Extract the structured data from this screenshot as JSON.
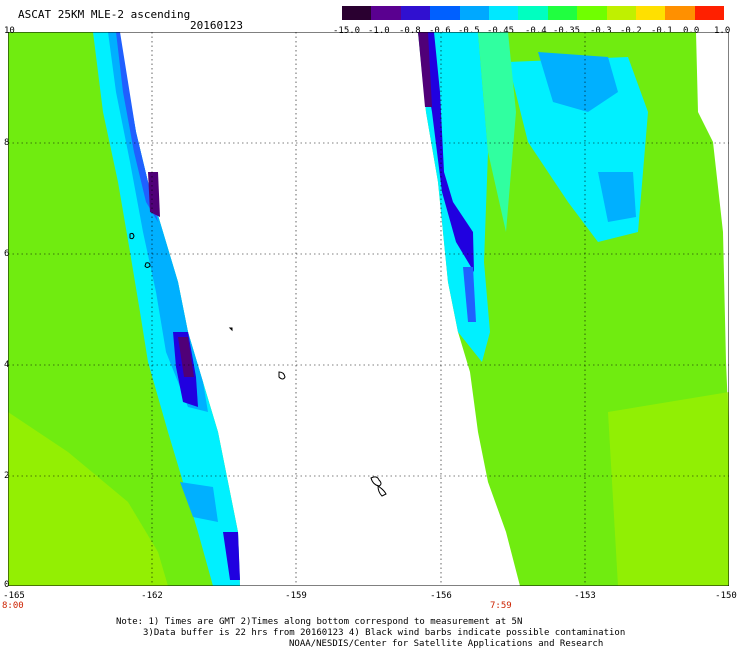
{
  "header": {
    "title": "ASCAT 25KM MLE-2 ascending",
    "date": "20160123"
  },
  "colorbar": {
    "labels": [
      "-15.0",
      "-1.0",
      "-0.8",
      "-0.6",
      "-0.5",
      "-0.45",
      "-0.4",
      "-0.35",
      "-0.3",
      "-0.2",
      "-0.1",
      "0.0",
      "1.0"
    ],
    "colors": [
      "#2a0030",
      "#5a0090",
      "#3010d0",
      "#0060ff",
      "#00a8ff",
      "#00e8ff",
      "#00ffc0",
      "#20ff40",
      "#70ff00",
      "#c0f000",
      "#ffe000",
      "#ff9000",
      "#ff2000"
    ]
  },
  "axes": {
    "y_ticks": [
      "10",
      "8",
      "6",
      "4",
      "2",
      "0"
    ],
    "x_ticks": [
      "-165",
      "-162",
      "-159",
      "-156",
      "-153",
      "-150"
    ]
  },
  "pass_times": {
    "left": "8:00",
    "right": "7:59"
  },
  "notes": {
    "line1": "Note: 1) Times are GMT 2)Times along bottom correspond to measurement at 5N",
    "line2": "3)Data buffer is 22 hrs from 20160123 4) Black wind barbs indicate possible contamination",
    "line3": "NOAA/NESDIS/Center for Satellite Applications and Research"
  },
  "map_colors": {
    "green": "#70ec10",
    "light_green": "#9cf000",
    "aqua": "#30ffa0",
    "cyan": "#00f0ff",
    "sky": "#00b0ff",
    "blue": "#2060ff",
    "deep_blue": "#2000e0",
    "purple": "#500078"
  }
}
